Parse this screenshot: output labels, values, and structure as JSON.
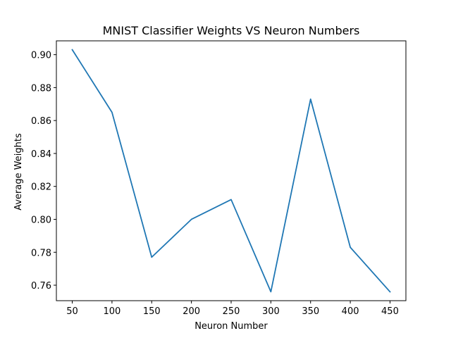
{
  "chart_data": {
    "type": "line",
    "title": "MNIST Classifier Weights VS Neuron Numbers",
    "xlabel": "Neuron Number",
    "ylabel": "Average Weights",
    "x": [
      50,
      100,
      150,
      200,
      250,
      300,
      350,
      400,
      450
    ],
    "series": [
      {
        "values": [
          0.903,
          0.865,
          0.777,
          0.8,
          0.812,
          0.756,
          0.873,
          0.783,
          0.756
        ],
        "color": "#1f77b4"
      }
    ],
    "xlim": [
      30,
      470
    ],
    "ylim": [
      0.7506,
      0.9084
    ],
    "x_ticks": [
      50,
      100,
      150,
      200,
      250,
      300,
      350,
      400,
      450
    ],
    "y_ticks": [
      0.76,
      0.78,
      0.8,
      0.82,
      0.84,
      0.86,
      0.88,
      0.9
    ],
    "y_tick_labels": [
      "0.76",
      "0.78",
      "0.80",
      "0.82",
      "0.84",
      "0.86",
      "0.88",
      "0.90"
    ],
    "grid": false,
    "legend": "none"
  }
}
